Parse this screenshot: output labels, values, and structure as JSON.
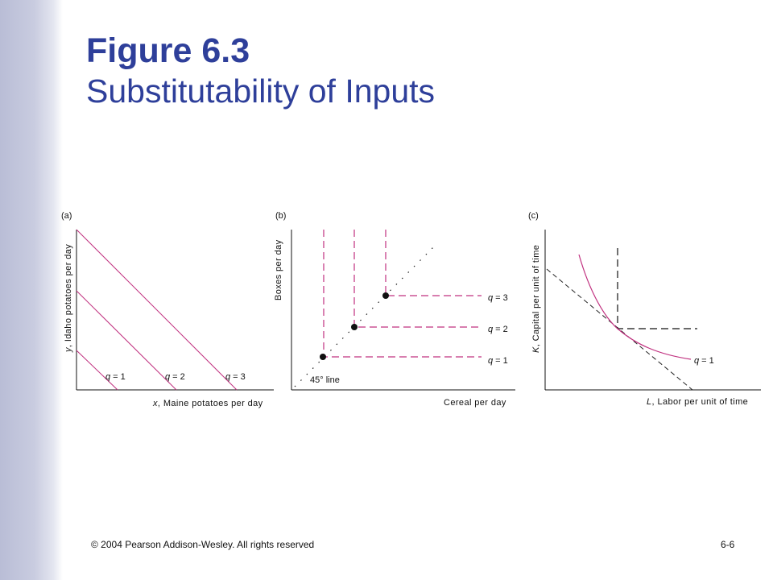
{
  "slide": {
    "title": "Figure 6.3",
    "subtitle": "Substitutability of Inputs",
    "footer_left": "© 2004 Pearson Addison-Wesley. All rights reserved",
    "footer_right": "6-6"
  },
  "colors": {
    "title": "#2e3f9a",
    "curve": "#c0307f",
    "axis": "#111111",
    "sidebar": "#c3c6dc"
  },
  "panels": {
    "a": {
      "tag": "(a)",
      "ylabel_italic": "y",
      "ylabel_rest": ", Idaho potatoes per day",
      "xlabel_italic": "x",
      "xlabel_rest": ", Maine potatoes per day",
      "q1": "= 1",
      "q2": "= 2",
      "q3": "= 3",
      "q_symbol": "q"
    },
    "b": {
      "tag": "(b)",
      "ylabel": "Boxes per day",
      "xlabel": "Cereal per day",
      "line_label": "45° line",
      "q1": "= 1",
      "q2": "= 2",
      "q3": "= 3",
      "q_symbol": "q"
    },
    "c": {
      "tag": "(c)",
      "ylabel_italic": "K",
      "ylabel_rest": ", Capital per unit of time",
      "xlabel_italic": "L",
      "xlabel_rest": ", Labor per unit of time",
      "q1": "= 1",
      "q_symbol": "q"
    }
  }
}
